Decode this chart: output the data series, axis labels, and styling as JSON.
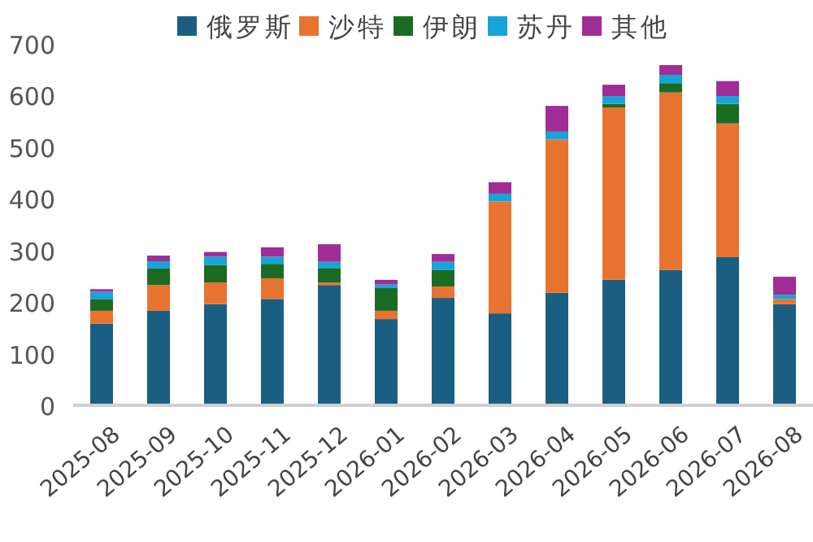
{
  "chart_data": {
    "type": "bar",
    "stacked": true,
    "legend": "top",
    "grid": false,
    "categories": [
      "2025-08",
      "2025-09",
      "2025-10",
      "2025-11",
      "2025-12",
      "2026-01",
      "2026-02",
      "2026-03",
      "2026-04",
      "2026-05",
      "2026-06",
      "2026-07",
      "2026-08"
    ],
    "ylim": [
      0,
      700
    ],
    "yticks": [
      0,
      100,
      200,
      300,
      400,
      500,
      600,
      700
    ],
    "series": [
      {
        "name": "俄罗斯",
        "color": "#1a5f82",
        "values": [
          158,
          183,
          196,
          206,
          233,
          167,
          208,
          178,
          218,
          243,
          262,
          287,
          196
        ]
      },
      {
        "name": "沙特",
        "color": "#e87331",
        "values": [
          25,
          50,
          42,
          40,
          5,
          16,
          22,
          217,
          297,
          334,
          344,
          259,
          10
        ]
      },
      {
        "name": "伊朗",
        "color": "#1c6b23",
        "values": [
          23,
          32,
          34,
          28,
          28,
          44,
          32,
          0,
          0,
          7,
          18,
          38,
          0
        ]
      },
      {
        "name": "苏丹",
        "color": "#17a4d8",
        "values": [
          14,
          14,
          16,
          14,
          12,
          7,
          16,
          15,
          15,
          15,
          16,
          15,
          8
        ]
      },
      {
        "name": "其他",
        "color": "#a02c96",
        "values": [
          5,
          11,
          9,
          18,
          34,
          9,
          15,
          22,
          50,
          22,
          19,
          29,
          35
        ]
      }
    ]
  }
}
